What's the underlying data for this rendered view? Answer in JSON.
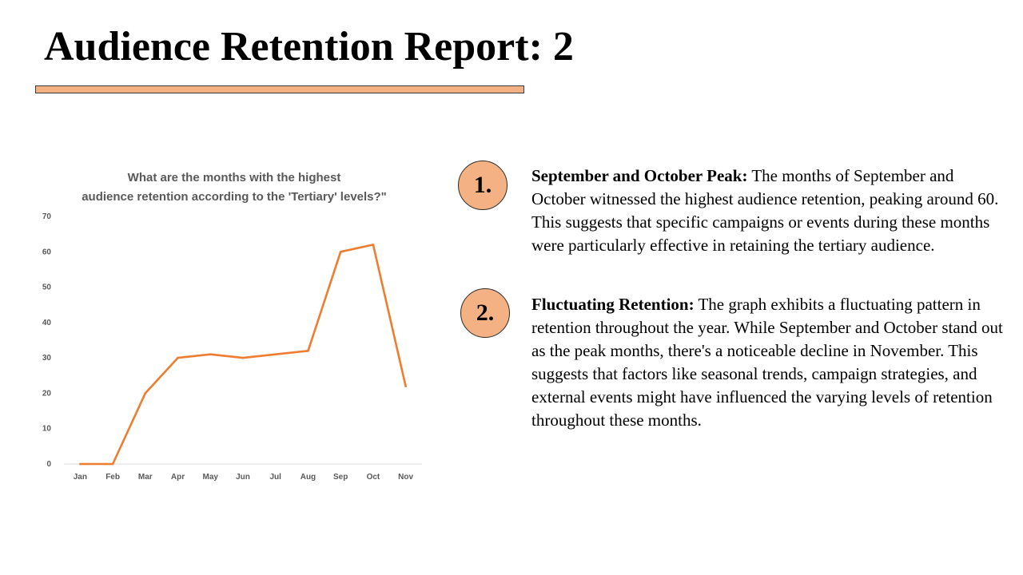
{
  "slide": {
    "title": "Audience Retention Report: 2",
    "accent_color": "#f4b183"
  },
  "points": [
    {
      "number": "1.",
      "heading": "September and October Peak:",
      "body": "The months of September and October witnessed the highest audience retention, peaking around 60. This suggests that specific campaigns or events during these months were particularly effective in retaining the tertiary audience."
    },
    {
      "number": "2.",
      "heading": "Fluctuating Retention:",
      "body": "The graph exhibits a fluctuating pattern in retention throughout the year. While September and October stand out as the peak months, there's a noticeable decline in November. This suggests that factors like seasonal trends, campaign strategies, and external events might have influenced the varying levels of retention throughout these months."
    }
  ],
  "chart_data": {
    "type": "line",
    "title": "What are the months with the highest audience retention according to the 'Tertiary' levels?\"",
    "categories": [
      "Jan",
      "Feb",
      "Mar",
      "Apr",
      "May",
      "Jun",
      "Jul",
      "Aug",
      "Sep",
      "Oct",
      "Nov"
    ],
    "series": [
      {
        "values": [
          0,
          0,
          20,
          30,
          31,
          30,
          31,
          32,
          60,
          62,
          22
        ],
        "color": "#ed7d31"
      }
    ],
    "yticks": [
      0,
      10,
      20,
      30,
      40,
      50,
      60,
      70
    ],
    "ylim": [
      0,
      70
    ],
    "xlabel": "",
    "ylabel": "",
    "grid": false,
    "legend": "none"
  }
}
